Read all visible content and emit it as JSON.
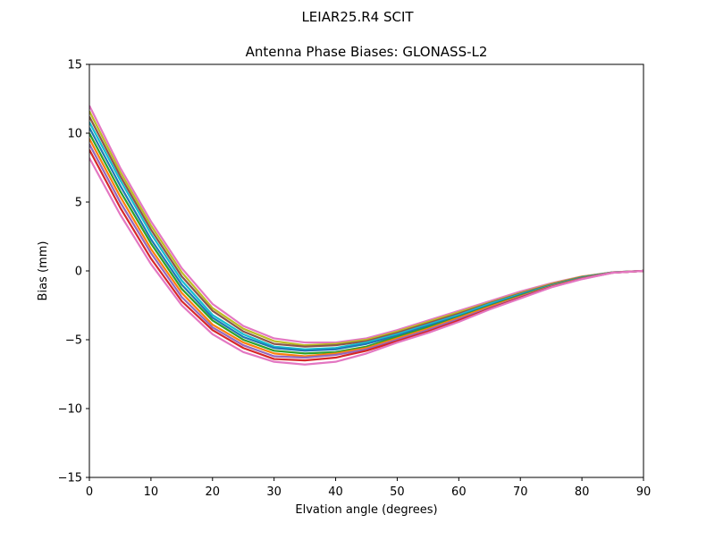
{
  "suptitle": "LEIAR25.R4       SCIT",
  "chart_data": {
    "type": "line",
    "title": "Antenna Phase Biases: GLONASS-L2",
    "xlabel": "Elvation angle (degrees)",
    "ylabel": "Bias (mm)",
    "xlim": [
      0,
      90
    ],
    "ylim": [
      -15,
      15
    ],
    "xticks": [
      0,
      10,
      20,
      30,
      40,
      50,
      60,
      70,
      80,
      90
    ],
    "yticks": [
      -15,
      -10,
      -5,
      0,
      5,
      10,
      15
    ],
    "grid": false,
    "legend": "none",
    "x": [
      0,
      5,
      10,
      15,
      20,
      25,
      30,
      35,
      40,
      45,
      50,
      55,
      60,
      65,
      70,
      75,
      80,
      85,
      90
    ],
    "series": [
      {
        "color": "#e377c2",
        "values": [
          12.0,
          7.5,
          3.6,
          0.2,
          -2.4,
          -4.0,
          -4.9,
          -5.2,
          -5.2,
          -4.9,
          -4.3,
          -3.6,
          -2.9,
          -2.2,
          -1.5,
          -0.9,
          -0.4,
          -0.1,
          0.0
        ]
      },
      {
        "color": "#bcbd22",
        "values": [
          11.6,
          7.2,
          3.3,
          -0.1,
          -2.7,
          -4.2,
          -5.1,
          -5.4,
          -5.3,
          -5.0,
          -4.4,
          -3.7,
          -3.0,
          -2.3,
          -1.6,
          -0.95,
          -0.42,
          -0.1,
          0.0
        ]
      },
      {
        "color": "#8c564b",
        "values": [
          11.2,
          6.9,
          3.0,
          -0.4,
          -2.9,
          -4.4,
          -5.3,
          -5.5,
          -5.4,
          -5.1,
          -4.5,
          -3.8,
          -3.1,
          -2.35,
          -1.65,
          -1.0,
          -0.45,
          -0.1,
          0.0
        ]
      },
      {
        "color": "#17becf",
        "values": [
          10.8,
          6.6,
          2.7,
          -0.7,
          -3.2,
          -4.6,
          -5.5,
          -5.7,
          -5.6,
          -5.2,
          -4.6,
          -3.9,
          -3.2,
          -2.4,
          -1.7,
          -1.05,
          -0.48,
          -0.1,
          0.0
        ]
      },
      {
        "color": "#1f77b4",
        "values": [
          10.4,
          6.2,
          2.3,
          -1.0,
          -3.4,
          -4.8,
          -5.6,
          -5.8,
          -5.7,
          -5.3,
          -4.7,
          -4.0,
          -3.3,
          -2.5,
          -1.75,
          -1.08,
          -0.5,
          -0.12,
          0.0
        ]
      },
      {
        "color": "#2ca02c",
        "values": [
          10.0,
          5.8,
          2.0,
          -1.3,
          -3.6,
          -5.0,
          -5.8,
          -6.0,
          -5.9,
          -5.5,
          -4.8,
          -4.1,
          -3.35,
          -2.55,
          -1.8,
          -1.1,
          -0.52,
          -0.12,
          0.0
        ]
      },
      {
        "color": "#ff7f0e",
        "values": [
          9.6,
          5.4,
          1.6,
          -1.6,
          -3.9,
          -5.2,
          -6.0,
          -6.2,
          -6.0,
          -5.6,
          -4.9,
          -4.2,
          -3.4,
          -2.6,
          -1.85,
          -1.12,
          -0.54,
          -0.12,
          0.0
        ]
      },
      {
        "color": "#9467bd",
        "values": [
          9.2,
          5.0,
          1.3,
          -1.9,
          -4.1,
          -5.4,
          -6.2,
          -6.3,
          -6.1,
          -5.7,
          -5.0,
          -4.3,
          -3.5,
          -2.7,
          -1.9,
          -1.15,
          -0.56,
          -0.13,
          0.0
        ]
      },
      {
        "color": "#d62728",
        "values": [
          8.8,
          4.6,
          0.9,
          -2.2,
          -4.3,
          -5.6,
          -6.4,
          -6.5,
          -6.3,
          -5.8,
          -5.1,
          -4.4,
          -3.6,
          -2.75,
          -1.95,
          -1.18,
          -0.58,
          -0.13,
          0.0
        ]
      },
      {
        "color": "#e377c2",
        "values": [
          8.2,
          4.1,
          0.5,
          -2.5,
          -4.6,
          -5.9,
          -6.6,
          -6.8,
          -6.6,
          -6.0,
          -5.2,
          -4.5,
          -3.7,
          -2.8,
          -2.0,
          -1.2,
          -0.6,
          -0.13,
          0.0
        ]
      }
    ]
  }
}
